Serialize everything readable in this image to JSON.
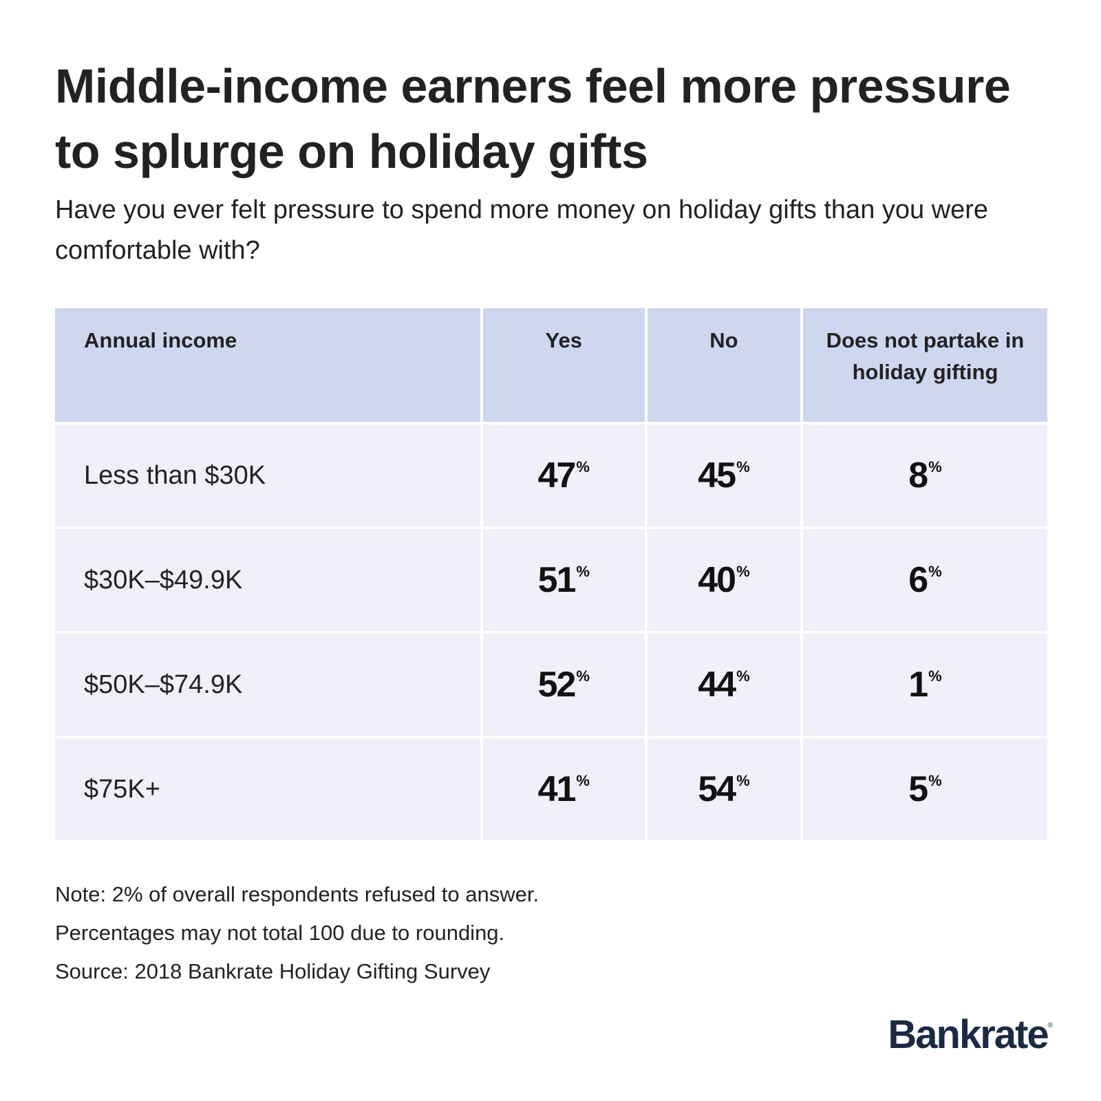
{
  "chart_data": {
    "type": "table",
    "title": "Middle-income earners feel more pressure to splurge on holiday gifts",
    "subtitle": "Have you ever felt pressure to spend more money on holiday gifts than you were comfortable with?",
    "columns": [
      "Annual income",
      "Yes",
      "No",
      "Does not partake in holiday gifting"
    ],
    "rows": [
      {
        "label": "Less than $30K",
        "values": [
          47,
          45,
          8
        ]
      },
      {
        "label": "$30K–$49.9K",
        "values": [
          51,
          40,
          6
        ]
      },
      {
        "label": "$50K–$74.9K",
        "values": [
          52,
          44,
          1
        ]
      },
      {
        "label": "$75K+",
        "values": [
          41,
          54,
          5
        ]
      }
    ],
    "unit": "%",
    "notes": [
      "Note: 2% of overall respondents refused to answer.",
      "Percentages may not total 100 due to rounding.",
      "Source: 2018 Bankrate Holiday Gifting Survey"
    ]
  },
  "brand": {
    "logo_text": "Bankrate",
    "logo_mark": "®",
    "header_color": "#cfd6f0",
    "row_color": "#eff0f9",
    "logo_color": "#1b2a44"
  }
}
